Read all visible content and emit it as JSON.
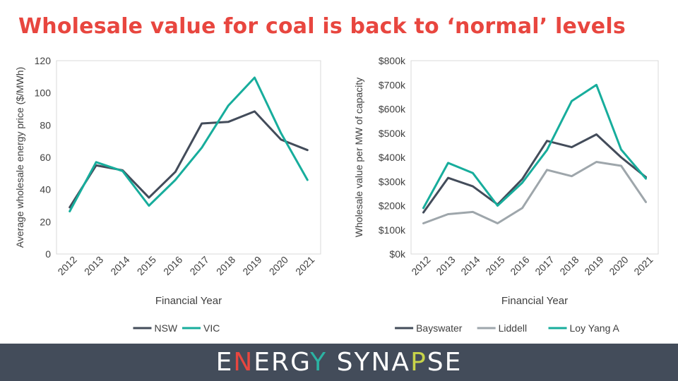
{
  "title": "Wholesale value for coal is back to ‘normal’ levels",
  "brand": {
    "text": "ENERGY SYNAPSE",
    "letter_colors": [
      "#ffffff",
      "#e8463f",
      "#ffffff",
      "#ffffff",
      "#ffffff",
      "#2bb3a3",
      "#ffffff",
      "#ffffff",
      "#ffffff",
      "#ffffff",
      "#ffffff",
      "#c8d44a",
      "#ffffff",
      "#ffffff"
    ]
  },
  "chart_data": [
    {
      "type": "line",
      "title": "",
      "xlabel": "Financial Year",
      "ylabel": "Average wholesale energy price ($/MWh)",
      "x": [
        "2012",
        "2013",
        "2014",
        "2015",
        "2016",
        "2017",
        "2018",
        "2019",
        "2020",
        "2021"
      ],
      "ylim": [
        0,
        120
      ],
      "yticks": [
        0,
        20,
        40,
        60,
        80,
        100,
        120
      ],
      "ytick_labels": [
        "0",
        "20",
        "40",
        "60",
        "80",
        "100",
        "120"
      ],
      "grid": false,
      "legend": "bottom",
      "series": [
        {
          "name": "NSW",
          "color": "#434c5a",
          "values": [
            29,
            55,
            52,
            35,
            51,
            81,
            82,
            88.5,
            71,
            64.5
          ]
        },
        {
          "name": "VIC",
          "color": "#17ad9c",
          "values": [
            26.5,
            57,
            51.5,
            30,
            46,
            66,
            92,
            109.5,
            75,
            46
          ]
        }
      ]
    },
    {
      "type": "line",
      "title": "",
      "xlabel": "Financial Year",
      "ylabel": "Wholesale value per MW of capacity",
      "x": [
        "2012",
        "2013",
        "2014",
        "2015",
        "2016",
        "2017",
        "2018",
        "2019",
        "2020",
        "2021"
      ],
      "ylim": [
        0,
        800
      ],
      "yticks": [
        0,
        100,
        200,
        300,
        400,
        500,
        600,
        700,
        800
      ],
      "ytick_labels": [
        "$0k",
        "$100k",
        "$200k",
        "$300k",
        "$400k",
        "$500k",
        "$600k",
        "$700k",
        "$800k"
      ],
      "grid": false,
      "legend": "bottom",
      "series": [
        {
          "name": "Bayswater",
          "color": "#434c5a",
          "values": [
            172,
            315,
            280,
            205,
            310,
            468,
            442,
            495,
            400,
            318
          ]
        },
        {
          "name": "Liddell",
          "color": "#9ea6ab",
          "values": [
            127,
            165,
            174,
            127,
            190,
            348,
            322,
            381,
            365,
            215
          ]
        },
        {
          "name": "Loy Yang A",
          "color": "#17ad9c",
          "values": [
            190,
            377,
            335,
            200,
            295,
            430,
            633,
            700,
            432,
            312
          ]
        }
      ]
    }
  ]
}
